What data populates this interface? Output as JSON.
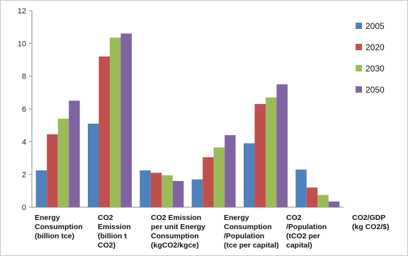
{
  "chart_data": {
    "type": "bar",
    "categories": [
      [
        "Energy",
        "Consumption",
        "(billion tce)"
      ],
      [
        "CO2",
        "Emission",
        "(billion t",
        "CO2)"
      ],
      [
        "CO2 Emission",
        "per unit Energy",
        "Consumption",
        "(kgCO2/kgce)"
      ],
      [
        "Energy",
        "Consumption",
        "/Population",
        "(tce per capital)"
      ],
      [
        "CO2",
        "/Population",
        "(tCO2 per",
        "capital)"
      ],
      [
        "CO2/GDP",
        "(kg CO2/$)"
      ]
    ],
    "series": [
      {
        "name": "2005",
        "color": "#4f81bd",
        "values": [
          2.25,
          5.1,
          2.25,
          1.7,
          3.9,
          2.3
        ]
      },
      {
        "name": "2020",
        "color": "#c0504d",
        "values": [
          4.45,
          9.2,
          2.1,
          3.05,
          6.3,
          1.2
        ]
      },
      {
        "name": "2030",
        "color": "#9bbb59",
        "values": [
          5.4,
          10.35,
          1.95,
          3.65,
          6.7,
          0.75
        ]
      },
      {
        "name": "2050",
        "color": "#8064a2",
        "values": [
          6.5,
          10.6,
          1.6,
          4.4,
          7.5,
          0.35
        ]
      }
    ],
    "ylim": [
      0,
      12
    ],
    "yticks": [
      0,
      2,
      4,
      6,
      8,
      10,
      12
    ],
    "grid": false,
    "legend_position": "right"
  }
}
